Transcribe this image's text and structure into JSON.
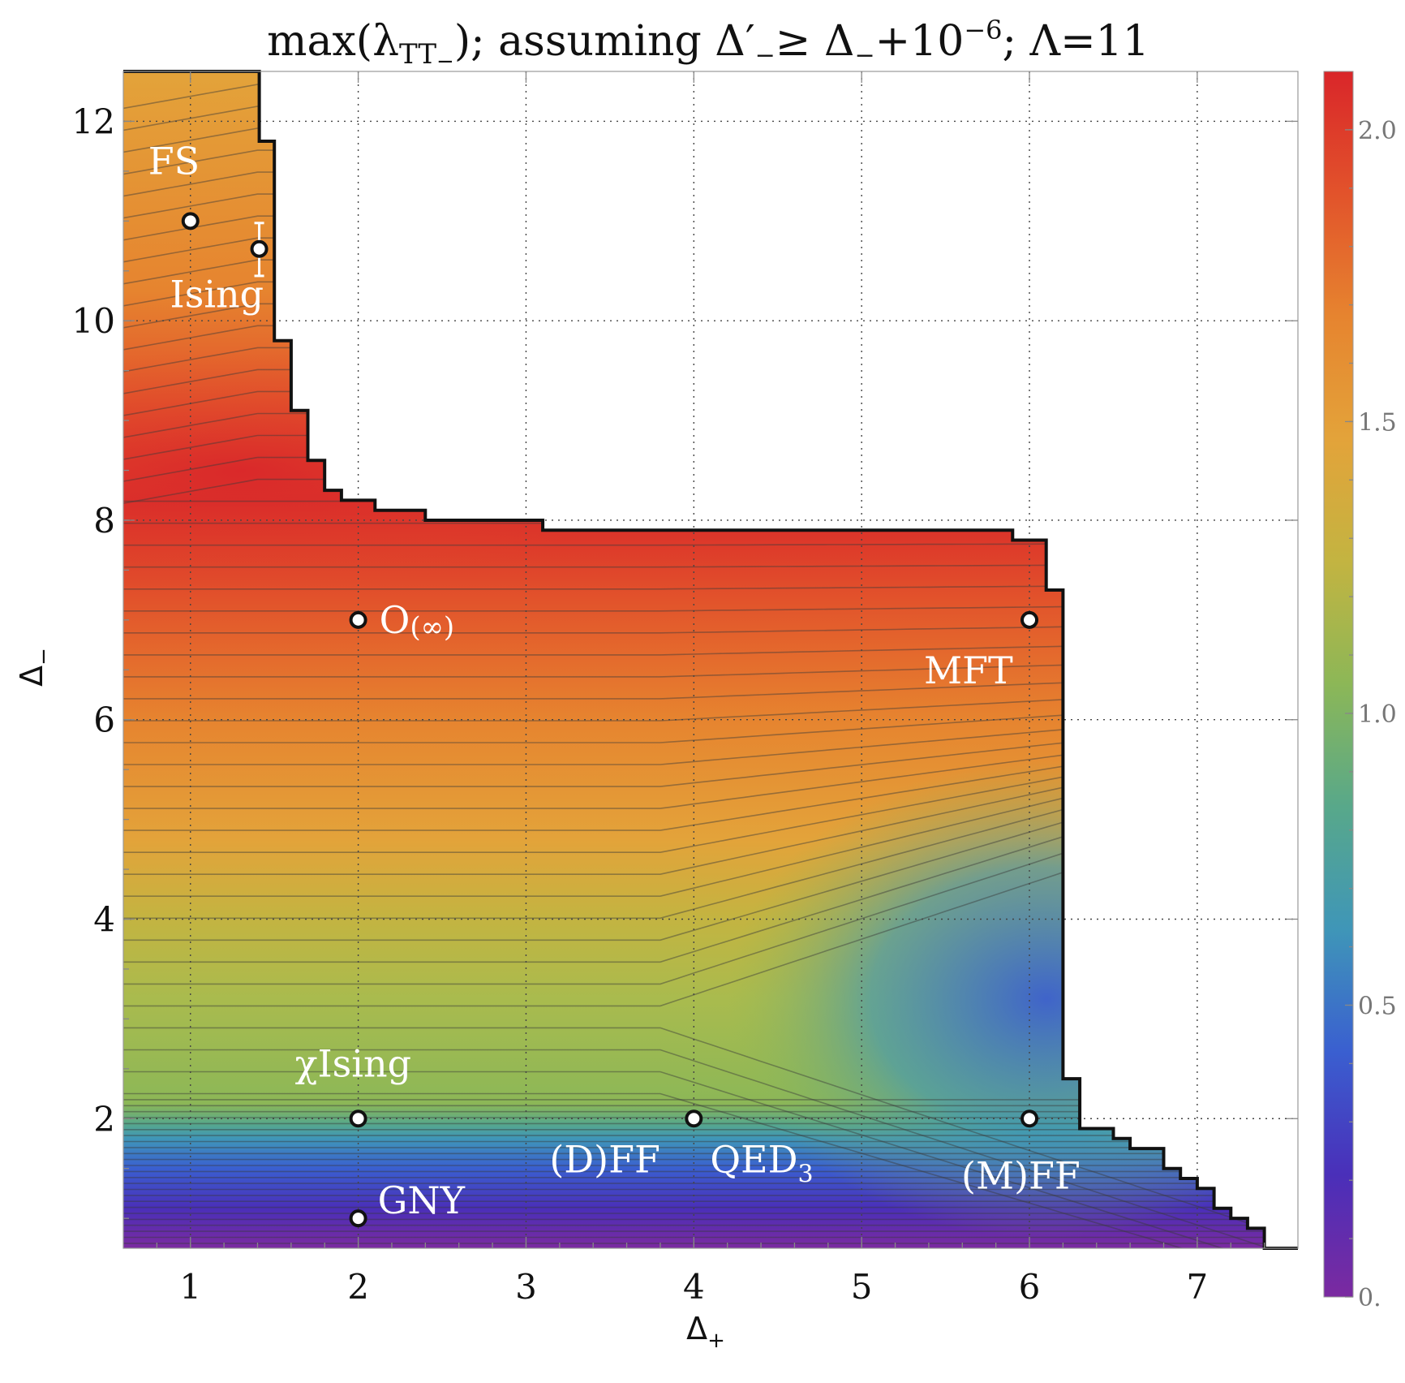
{
  "chart_data": {
    "type": "heatmap",
    "title": "max(λTT−); assuming Δ′−≥ Δ−+10−6; Λ=11",
    "title_parts": {
      "max": "max(λ",
      "tt": "TT",
      "minus": "−",
      "mid": "); assuming Δ′",
      "mid_sub": "−",
      "geq": "≥ Δ",
      "geq_sub": "−",
      "plus": "+10",
      "exp": "−6",
      "tail": "; Λ=11"
    },
    "xlabel": "Δ",
    "xlabel_sub": "+",
    "ylabel": "Δ",
    "ylabel_sub": "−",
    "xlim": [
      0.6,
      7.6
    ],
    "ylim": [
      0.7,
      12.5
    ],
    "xticks": [
      "1",
      "2",
      "3",
      "4",
      "5",
      "6",
      "7"
    ],
    "yticks": [
      "2",
      "4",
      "6",
      "8",
      "10",
      "12"
    ],
    "xticks_values": [
      1,
      2,
      3,
      4,
      5,
      6,
      7
    ],
    "yticks_values": [
      2,
      4,
      6,
      8,
      10,
      12
    ],
    "grid": true,
    "colorbar": {
      "range": [
        0,
        2.1
      ],
      "ticks": [
        "0.",
        "0.5",
        "1.0",
        "1.5",
        "2.0"
      ],
      "tick_values": [
        0,
        0.5,
        1.0,
        1.5,
        2.0
      ],
      "colors": [
        "#7b2aa0",
        "#4a2fb9",
        "#3a5fd0",
        "#3f96b8",
        "#58a88a",
        "#8cb757",
        "#c3b441",
        "#e3a33a",
        "#e6842f",
        "#e2532b",
        "#d9262a"
      ]
    },
    "boundary": [
      [
        0.6,
        12.5
      ],
      [
        1.41,
        12.5
      ],
      [
        1.41,
        11.8
      ],
      [
        1.5,
        11.8
      ],
      [
        1.5,
        9.8
      ],
      [
        1.6,
        9.8
      ],
      [
        1.6,
        9.1
      ],
      [
        1.7,
        9.1
      ],
      [
        1.7,
        8.6
      ],
      [
        1.8,
        8.6
      ],
      [
        1.8,
        8.3
      ],
      [
        1.9,
        8.3
      ],
      [
        1.9,
        8.2
      ],
      [
        2.1,
        8.2
      ],
      [
        2.1,
        8.1
      ],
      [
        2.4,
        8.1
      ],
      [
        2.4,
        8.0
      ],
      [
        3.1,
        8.0
      ],
      [
        3.1,
        7.9
      ],
      [
        5.9,
        7.9
      ],
      [
        5.9,
        7.8
      ],
      [
        6.1,
        7.8
      ],
      [
        6.1,
        7.3
      ],
      [
        6.2,
        7.3
      ],
      [
        6.2,
        2.4
      ],
      [
        6.3,
        2.4
      ],
      [
        6.3,
        1.9
      ],
      [
        6.5,
        1.9
      ],
      [
        6.5,
        1.8
      ],
      [
        6.6,
        1.8
      ],
      [
        6.6,
        1.7
      ],
      [
        6.8,
        1.7
      ],
      [
        6.8,
        1.5
      ],
      [
        6.9,
        1.5
      ],
      [
        6.9,
        1.4
      ],
      [
        7.0,
        1.4
      ],
      [
        7.0,
        1.3
      ],
      [
        7.1,
        1.3
      ],
      [
        7.1,
        1.1
      ],
      [
        7.2,
        1.1
      ],
      [
        7.2,
        1.0
      ],
      [
        7.3,
        1.0
      ],
      [
        7.3,
        0.9
      ],
      [
        7.4,
        0.9
      ],
      [
        7.4,
        0.7
      ],
      [
        7.6,
        0.7
      ]
    ],
    "points": [
      {
        "name": "FS",
        "x": 1.0,
        "y": 11.0,
        "label": "FS"
      },
      {
        "name": "Ising",
        "x": 1.41,
        "y": 10.72,
        "label": "Ising",
        "error_bar": [
          10.45,
          10.98
        ]
      },
      {
        "name": "O-infinity",
        "x": 2.0,
        "y": 7.0,
        "label": "O(∞)",
        "label_main": "O",
        "label_paren": "(∞)"
      },
      {
        "name": "MFT",
        "x": 6.0,
        "y": 7.0,
        "label": "MFT"
      },
      {
        "name": "chi-Ising",
        "x": 2.0,
        "y": 2.0,
        "label": "χIsing"
      },
      {
        "name": "QED3",
        "x": 4.0,
        "y": 2.0,
        "label": "QED3",
        "label_main": "QED",
        "label_sub": "3"
      },
      {
        "name": "D-FF",
        "x": 4.0,
        "y": 2.0,
        "label": "(D)FF"
      },
      {
        "name": "M-FF",
        "x": 6.0,
        "y": 2.0,
        "label": "(M)FF"
      },
      {
        "name": "GNY",
        "x": 2.0,
        "y": 1.0,
        "label": "GNY"
      }
    ]
  }
}
